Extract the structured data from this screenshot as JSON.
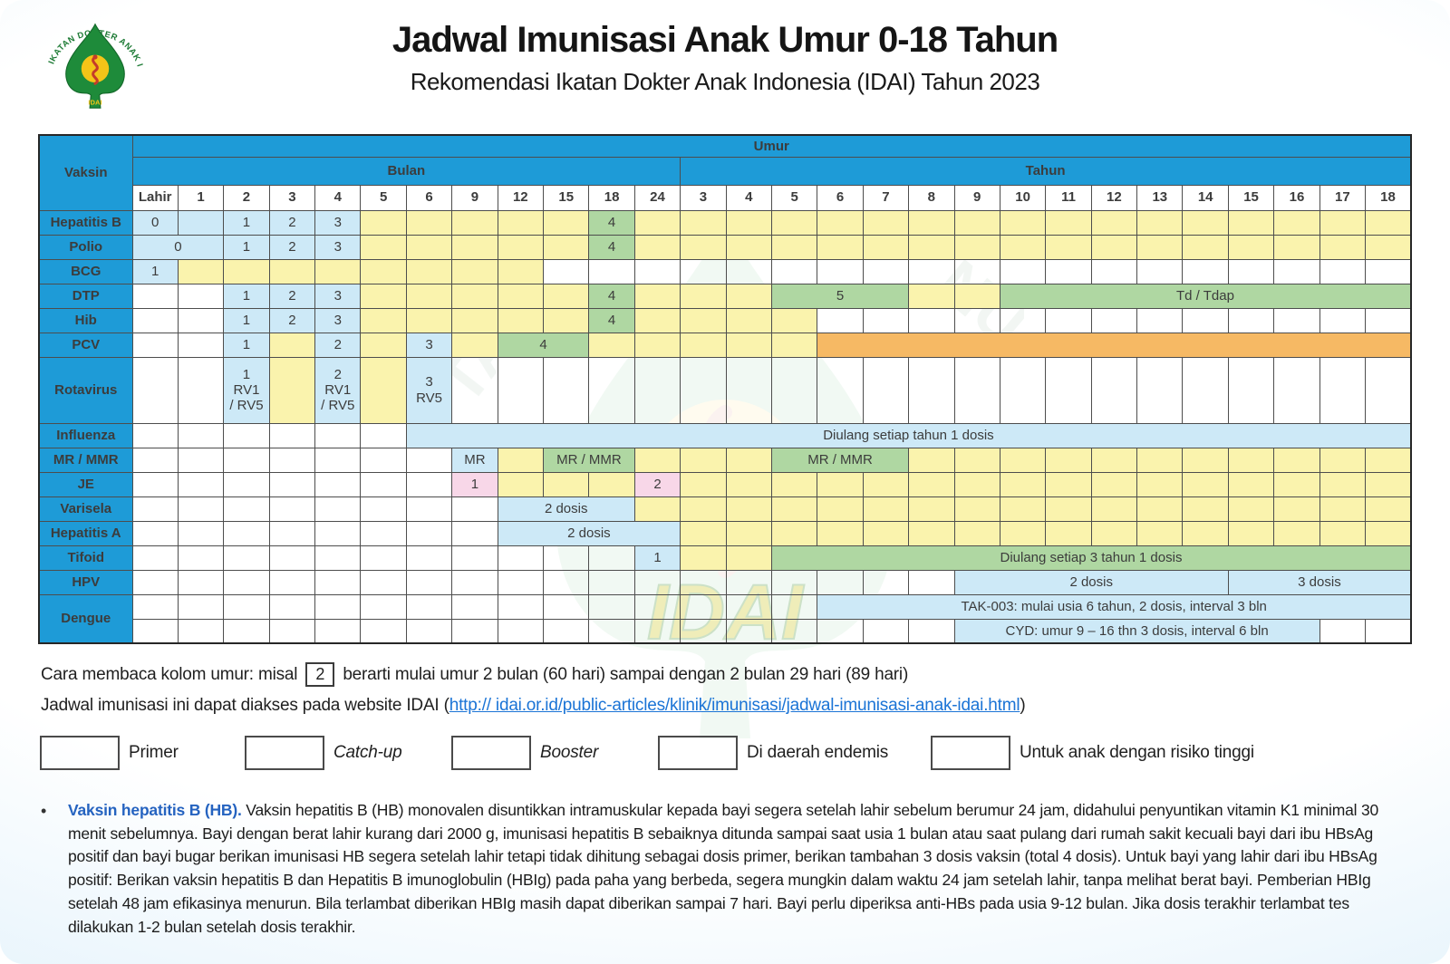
{
  "header": {
    "title": "Jadwal Imunisasi Anak Umur 0-18 Tahun",
    "subtitle": "Rekomendasi Ikatan Dokter Anak Indonesia (IDAI) Tahun 2023",
    "logo_text_arc": "IKATAN DOKTER ANAK INDONESIA",
    "logo_text_bottom": "IDAI"
  },
  "colors": {
    "header_blue": "#1e9bd7",
    "primer_blue": "#cde9f7",
    "catch_up_yellow": "#faf3ad",
    "booster_green": "#afd7a2",
    "endemis_pink": "#f8d7e8",
    "risiko_orange": "#f6b964",
    "link_blue": "#1b74d6",
    "note_lead_blue": "#2563c0"
  },
  "table": {
    "corner_label": "Vaksin",
    "age_label": "Umur",
    "group_labels": [
      "Bulan",
      "Tahun"
    ],
    "bulan_columns": [
      "Lahir",
      "1",
      "2",
      "3",
      "4",
      "5",
      "6",
      "9",
      "12",
      "15",
      "18",
      "24"
    ],
    "tahun_columns": [
      "3",
      "4",
      "5",
      "6",
      "7",
      "8",
      "9",
      "10",
      "11",
      "12",
      "13",
      "14",
      "15",
      "16",
      "17",
      "18"
    ],
    "rows": [
      {
        "vaccine": "Hepatitis B",
        "cells": [
          [
            1,
            1,
            "p",
            "0"
          ],
          [
            1,
            1,
            "p",
            ""
          ],
          [
            1,
            1,
            "p",
            "1"
          ],
          [
            1,
            1,
            "p",
            "2"
          ],
          [
            1,
            1,
            "p",
            "3"
          ],
          [
            5,
            1,
            "y",
            ""
          ],
          [
            1,
            1,
            "g",
            "4"
          ],
          [
            17,
            1,
            "y",
            ""
          ]
        ]
      },
      {
        "vaccine": "Polio",
        "cells": [
          [
            1,
            2,
            "p",
            "0"
          ],
          [
            1,
            1,
            "p",
            "1"
          ],
          [
            1,
            1,
            "p",
            "2"
          ],
          [
            1,
            1,
            "p",
            "3"
          ],
          [
            5,
            1,
            "y",
            ""
          ],
          [
            1,
            1,
            "g",
            "4"
          ],
          [
            17,
            1,
            "y",
            ""
          ]
        ]
      },
      {
        "vaccine": "BCG",
        "cells": [
          [
            1,
            1,
            "p",
            "1"
          ],
          [
            8,
            1,
            "y",
            ""
          ],
          [
            19,
            1,
            "w",
            ""
          ]
        ]
      },
      {
        "vaccine": "DTP",
        "cells": [
          [
            2,
            1,
            "w",
            ""
          ],
          [
            1,
            1,
            "p",
            "1"
          ],
          [
            1,
            1,
            "p",
            "2"
          ],
          [
            1,
            1,
            "p",
            "3"
          ],
          [
            5,
            1,
            "y",
            ""
          ],
          [
            1,
            1,
            "g",
            "4"
          ],
          [
            3,
            1,
            "y",
            ""
          ],
          [
            1,
            3,
            "g",
            "5"
          ],
          [
            2,
            1,
            "y",
            ""
          ],
          [
            1,
            9,
            "g",
            "Td / Tdap"
          ]
        ]
      },
      {
        "vaccine": "Hib",
        "cells": [
          [
            2,
            1,
            "w",
            ""
          ],
          [
            1,
            1,
            "p",
            "1"
          ],
          [
            1,
            1,
            "p",
            "2"
          ],
          [
            1,
            1,
            "p",
            "3"
          ],
          [
            5,
            1,
            "y",
            ""
          ],
          [
            1,
            1,
            "g",
            "4"
          ],
          [
            4,
            1,
            "y",
            ""
          ],
          [
            13,
            1,
            "w",
            ""
          ]
        ]
      },
      {
        "vaccine": "PCV",
        "cells": [
          [
            2,
            1,
            "w",
            ""
          ],
          [
            1,
            1,
            "p",
            "1"
          ],
          [
            1,
            1,
            "y",
            ""
          ],
          [
            1,
            1,
            "p",
            "2"
          ],
          [
            1,
            1,
            "y",
            ""
          ],
          [
            1,
            1,
            "p",
            "3"
          ],
          [
            1,
            1,
            "y",
            ""
          ],
          [
            1,
            2,
            "g",
            "4"
          ],
          [
            5,
            1,
            "y",
            ""
          ],
          [
            1,
            13,
            "o",
            ""
          ]
        ]
      },
      {
        "vaccine": "Rotavirus",
        "h": 73,
        "cells": [
          [
            2,
            1,
            "w",
            ""
          ],
          [
            1,
            1,
            "p",
            "1\nRV1\n/ RV5"
          ],
          [
            1,
            1,
            "y",
            ""
          ],
          [
            1,
            1,
            "p",
            "2\nRV1\n/ RV5"
          ],
          [
            1,
            1,
            "y",
            ""
          ],
          [
            1,
            1,
            "p",
            "3\nRV5"
          ],
          [
            21,
            1,
            "w",
            ""
          ]
        ]
      },
      {
        "vaccine": "Influenza",
        "cells": [
          [
            6,
            1,
            "w",
            ""
          ],
          [
            1,
            22,
            "p",
            "Diulang setiap tahun 1 dosis"
          ]
        ]
      },
      {
        "vaccine": "MR / MMR",
        "cells": [
          [
            7,
            1,
            "w",
            ""
          ],
          [
            1,
            1,
            "p",
            "MR"
          ],
          [
            1,
            1,
            "y",
            ""
          ],
          [
            1,
            2,
            "g",
            "MR / MMR"
          ],
          [
            3,
            1,
            "y",
            ""
          ],
          [
            1,
            3,
            "g",
            "MR / MMR"
          ],
          [
            11,
            1,
            "y",
            ""
          ]
        ]
      },
      {
        "vaccine": "JE",
        "cells": [
          [
            7,
            1,
            "w",
            ""
          ],
          [
            1,
            1,
            "k",
            "1"
          ],
          [
            3,
            1,
            "y",
            ""
          ],
          [
            1,
            1,
            "k",
            "2"
          ],
          [
            16,
            1,
            "y",
            ""
          ]
        ]
      },
      {
        "vaccine": "Varisela",
        "cells": [
          [
            8,
            1,
            "w",
            ""
          ],
          [
            1,
            3,
            "p",
            "2 dosis"
          ],
          [
            17,
            1,
            "y",
            ""
          ]
        ]
      },
      {
        "vaccine": "Hepatitis A",
        "cells": [
          [
            8,
            1,
            "w",
            ""
          ],
          [
            1,
            4,
            "p",
            "2 dosis"
          ],
          [
            16,
            1,
            "y",
            ""
          ]
        ]
      },
      {
        "vaccine": "Tifoid",
        "cells": [
          [
            11,
            1,
            "w",
            ""
          ],
          [
            1,
            1,
            "p",
            "1"
          ],
          [
            2,
            1,
            "y",
            ""
          ],
          [
            1,
            14,
            "g",
            "Diulang setiap 3 tahun 1 dosis"
          ]
        ]
      },
      {
        "vaccine": "HPV",
        "cells": [
          [
            18,
            1,
            "w",
            ""
          ],
          [
            1,
            6,
            "p",
            "2 dosis"
          ],
          [
            1,
            4,
            "p",
            "3 dosis"
          ]
        ]
      },
      {
        "vaccine": "Dengue",
        "subrows": [
          [
            [
              15,
              1,
              "w",
              ""
            ],
            [
              1,
              13,
              "p",
              "TAK-003:  mulai usia 6 tahun,  2 dosis, interval 3 bln"
            ]
          ],
          [
            [
              18,
              1,
              "w",
              ""
            ],
            [
              1,
              8,
              "p",
              "CYD: umur 9 – 16 thn 3 dosis, interval 6 bln"
            ],
            [
              2,
              1,
              "w",
              ""
            ]
          ]
        ]
      }
    ]
  },
  "notes": {
    "how_to_read_prefix": "Cara membaca kolom umur: misal",
    "how_to_read_box": "2",
    "how_to_read_suffix": "berarti mulai umur 2 bulan (60 hari) sampai dengan 2 bulan 29 hari (89 hari)",
    "website_prefix": "Jadwal imunisasi ini dapat diakses pada website IDAI (",
    "website_link": "http:// idai.or.id/public-articles/klinik/imunisasi/jadwal-imunisasi-anak-idai.html",
    "website_suffix": ")"
  },
  "legend": {
    "items": [
      {
        "label": "Primer",
        "key": "p",
        "italic": false
      },
      {
        "label": "Catch-up",
        "key": "y",
        "italic": true
      },
      {
        "label": "Booster",
        "key": "g",
        "italic": true
      },
      {
        "label": "Di daerah endemis",
        "key": "k",
        "italic": false
      },
      {
        "label": "Untuk anak dengan risiko tinggi",
        "key": "o",
        "italic": false
      }
    ]
  },
  "hb_note": {
    "bullet": "•",
    "lead": "Vaksin hepatitis B (HB).",
    "body": " Vaksin hepatitis B (HB) monovalen disuntikkan intramuskular kepada bayi segera setelah lahir sebelum berumur 24 jam, didahului penyuntikan vitamin K1 minimal 30 menit sebelumnya. Bayi dengan berat lahir kurang dari 2000 g, imunisasi hepatitis B sebaiknya ditunda sampai saat usia 1 bulan atau saat pulang dari rumah sakit kecuali bayi dari ibu HBsAg positif dan bayi bugar berikan imunisasi HB segera setelah lahir tetapi tidak dihitung sebagai dosis primer, berikan tambahan 3 dosis vaksin (total 4 dosis). Untuk bayi yang lahir dari ibu HBsAg positif: Berikan vaksin hepatitis B dan Hepatitis B imunoglobulin (HBIg) pada paha yang berbeda, segera mungkin dalam waktu 24 jam setelah lahir, tanpa melihat berat bayi. Pemberian HBIg setelah 48 jam efikasinya menurun. Bila terlambat diberikan HBIg masih dapat diberikan sampai 7 hari. Bayi perlu diperiksa anti-HBs pada usia 9-12 bulan. Jika dosis terakhir terlambat tes dilakukan 1-2 bulan setelah dosis terakhir."
  }
}
